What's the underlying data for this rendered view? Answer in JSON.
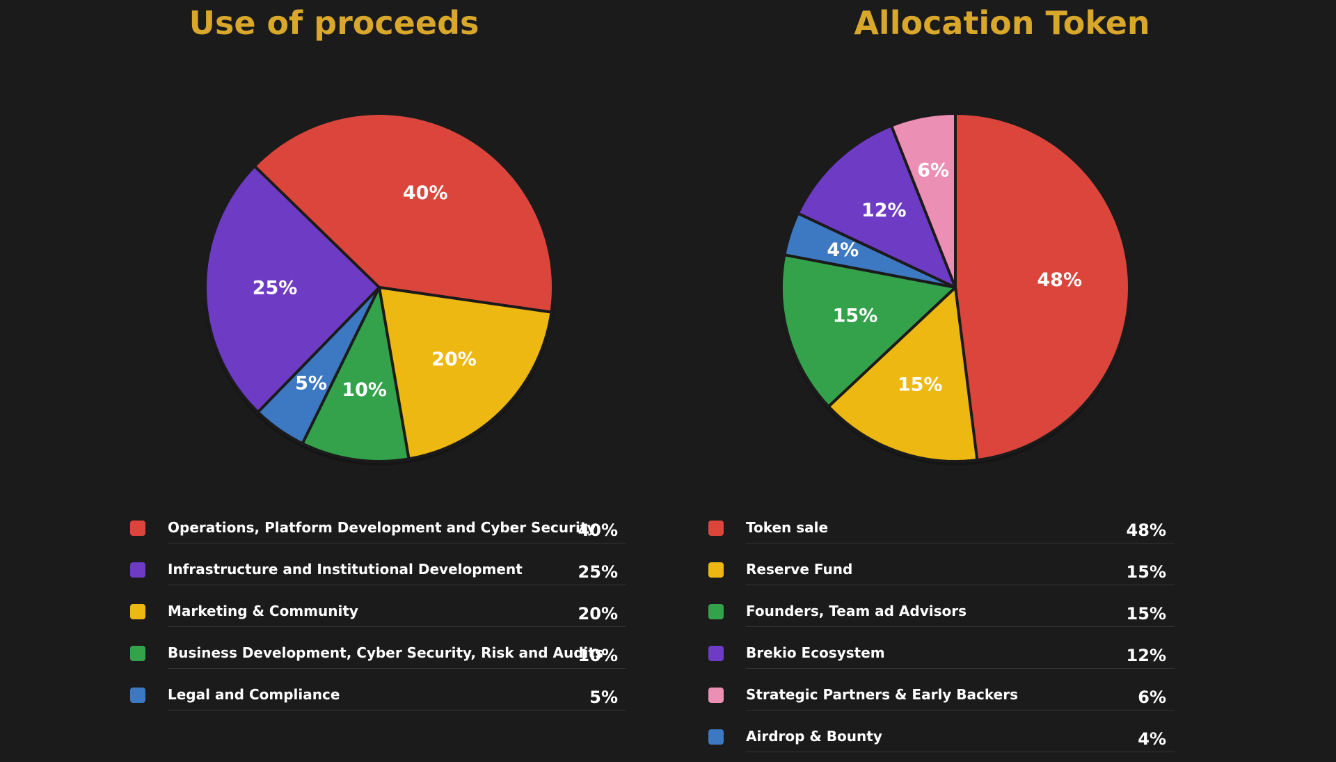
{
  "chart_data": [
    {
      "type": "pie",
      "title": "Use of proceeds",
      "slices": [
        {
          "label": "Operations, Platform Development and Cyber Security",
          "value": 40,
          "value_label": "40%",
          "color": "#db453b"
        },
        {
          "label": "Infrastructure and Institutional Development",
          "value": 25,
          "value_label": "25%",
          "color": "#6e3bc4"
        },
        {
          "label": "Marketing & Community",
          "value": 20,
          "value_label": "20%",
          "color": "#eeb812"
        },
        {
          "label": "Business Development, Cyber Security, Risk and Audits",
          "value": 10,
          "value_label": "10%",
          "color": "#33a24b"
        },
        {
          "label": "Legal and Compliance",
          "value": 5,
          "value_label": "5%",
          "color": "#3c79c2"
        }
      ],
      "pie_order": [
        "Operations, Platform Development and Cyber Security",
        "Marketing & Community",
        "Business Development, Cyber Security, Risk and Audits",
        "Legal and Compliance",
        "Infrastructure and Institutional Development"
      ],
      "legend_position": "bottom"
    },
    {
      "type": "pie",
      "title": "Allocation Token",
      "slices": [
        {
          "label": "Token sale",
          "value": 48,
          "value_label": "48%",
          "color": "#db453b"
        },
        {
          "label": "Reserve Fund",
          "value": 15,
          "value_label": "15%",
          "color": "#eeb812"
        },
        {
          "label": "Founders, Team ad Advisors",
          "value": 15,
          "value_label": "15%",
          "color": "#33a24b"
        },
        {
          "label": "Brekio Ecosystem",
          "value": 12,
          "value_label": "12%",
          "color": "#6e3bc4"
        },
        {
          "label": "Strategic Partners & Early Backers",
          "value": 6,
          "value_label": "6%",
          "color": "#ec8fb5"
        },
        {
          "label": "Airdrop & Bounty",
          "value": 4,
          "value_label": "4%",
          "color": "#3c79c2"
        }
      ],
      "pie_order": [
        "Token sale",
        "Reserve Fund",
        "Founders, Team ad Advisors",
        "Airdrop & Bounty",
        "Brekio Ecosystem",
        "Strategic Partners & Early Backers"
      ],
      "legend_position": "bottom"
    }
  ]
}
